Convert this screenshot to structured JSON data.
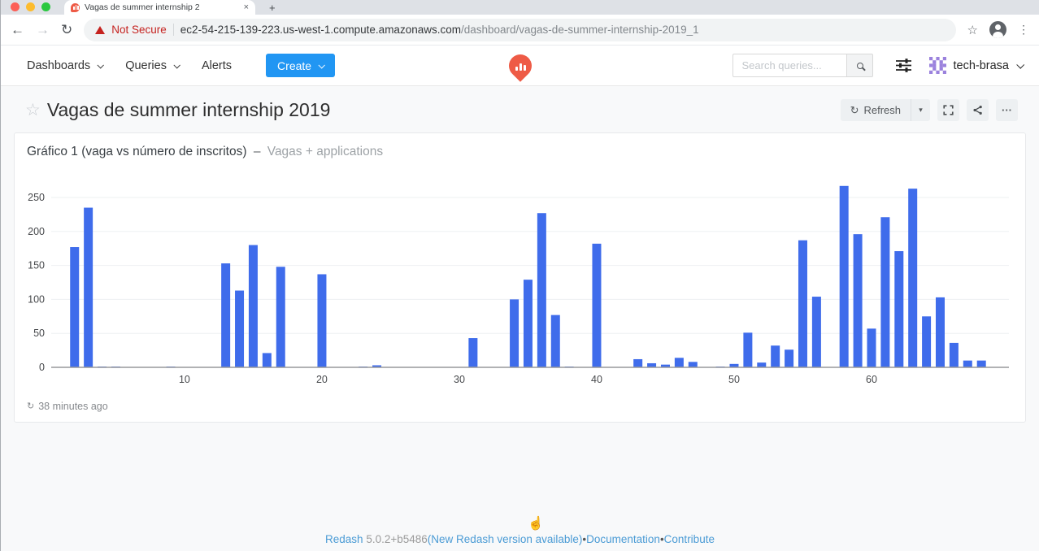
{
  "browser": {
    "tab": {
      "title": "Vagas de summer internship 2"
    },
    "security_label": "Not Secure",
    "url_host": "ec2-54-215-139-223.us-west-1.compute.amazonaws.com",
    "url_path": "/dashboard/vagas-de-summer-internship-2019_1"
  },
  "navbar": {
    "dashboards": "Dashboards",
    "queries": "Queries",
    "alerts": "Alerts",
    "create": "Create",
    "search_placeholder": "Search queries...",
    "user_name": "tech-brasa"
  },
  "dashboard": {
    "title": "Vagas de summer internship 2019",
    "refresh_label": "Refresh"
  },
  "widget": {
    "title": "Gráfico 1 (vaga vs número de inscritos)",
    "separator": "–",
    "query_name": "Vagas + applications",
    "last_refreshed": "38 minutes ago"
  },
  "footer": {
    "product": "Redash",
    "version": "5.0.2+b5486",
    "update": "(New Redash version available)",
    "bullet": "•",
    "documentation": "Documentation",
    "contribute": "Contribute"
  },
  "icons": {
    "back": "←",
    "forward": "→",
    "reload": "↻",
    "refresh": "↻",
    "star_outline": "☆",
    "menu_vertical": "⋮",
    "close": "×",
    "new_tab": "+",
    "caret_down_small": "▾",
    "more_horizontal": "···",
    "hand": "☝"
  },
  "colors": {
    "accent": "#2196f3",
    "brand": "#ee5b46",
    "bar": "#3f6ceb",
    "danger": "#c5221f",
    "link": "#4a9bd5"
  },
  "chart_data": {
    "type": "bar",
    "title": "Gráfico 1 (vaga vs número de inscritos)",
    "series_name": "Vagas + applications",
    "xlabel": "",
    "ylabel": "",
    "x": [
      2,
      3,
      4,
      5,
      9,
      13,
      14,
      15,
      16,
      17,
      20,
      23,
      24,
      31,
      34,
      35,
      36,
      37,
      38,
      40,
      43,
      44,
      45,
      46,
      47,
      49,
      50,
      51,
      52,
      53,
      54,
      55,
      56,
      58,
      59,
      60,
      61,
      62,
      63,
      64,
      65,
      66,
      67,
      68
    ],
    "values": [
      177,
      235,
      1,
      1,
      1,
      153,
      113,
      180,
      21,
      148,
      137,
      1,
      3,
      43,
      100,
      129,
      227,
      77,
      1,
      182,
      12,
      6,
      4,
      14,
      8,
      1,
      5,
      51,
      7,
      32,
      26,
      187,
      104,
      267,
      196,
      57,
      221,
      171,
      263,
      75,
      103,
      36,
      10,
      10
    ],
    "x_ticks": [
      10,
      20,
      30,
      40,
      50,
      60
    ],
    "y_ticks": [
      0,
      50,
      100,
      150,
      200,
      250
    ],
    "xlim": [
      0.3,
      70
    ],
    "ylim": [
      0,
      290
    ],
    "grid": true,
    "legend": false,
    "bar_color": "#3f6ceb"
  }
}
